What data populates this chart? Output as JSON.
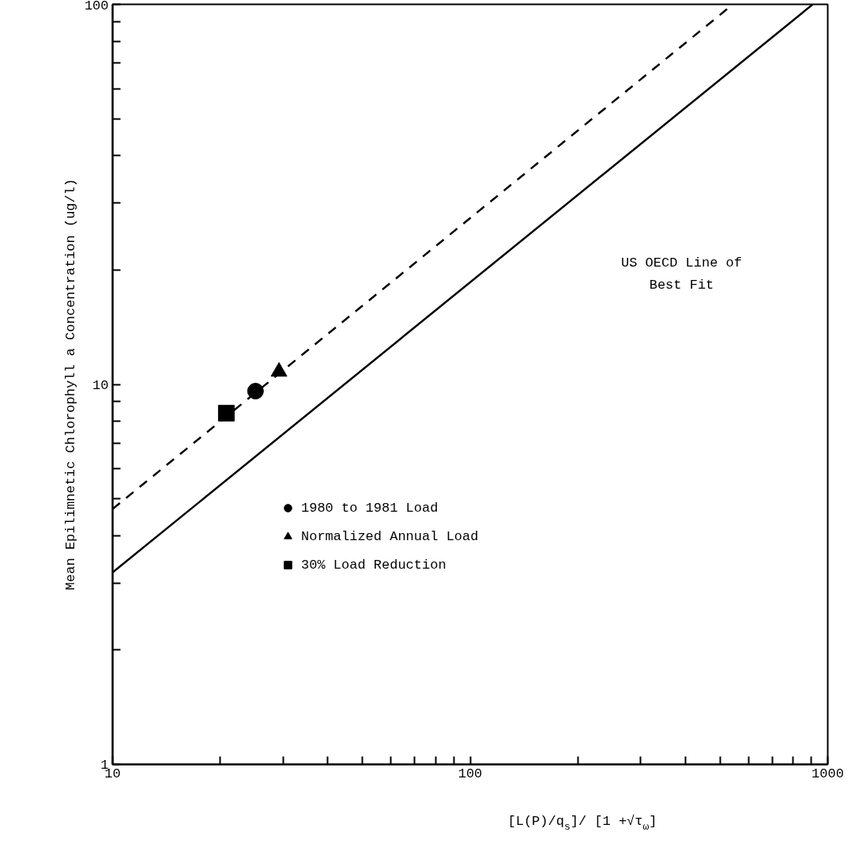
{
  "chart_data": {
    "type": "scatter",
    "xlabel": "[L(P)/q$_{s}$]/ [1 +√τ$_{ω}$]",
    "ylabel": "Mean Epilimnetic Chlorophyll a Concentration (ug/l)",
    "log": "xy",
    "xlim": [
      10,
      1000
    ],
    "ylim": [
      1,
      100
    ],
    "xticks": [
      10,
      {
        "value": 20,
        "label": null
      },
      {
        "value": 30,
        "label": null
      },
      {
        "value": 40,
        "label": null
      },
      {
        "value": 50,
        "label": null
      },
      {
        "value": 60,
        "label": null
      },
      {
        "value": 70,
        "label": null
      },
      {
        "value": 80,
        "label": null
      },
      {
        "value": 90,
        "label": null
      },
      100,
      {
        "value": 200,
        "label": null
      },
      {
        "value": 300,
        "label": null
      },
      {
        "value": 400,
        "label": null
      },
      {
        "value": 500,
        "label": null
      },
      {
        "value": 600,
        "label": null
      },
      {
        "value": 700,
        "label": null
      },
      {
        "value": 800,
        "label": null
      },
      {
        "value": 900,
        "label": null
      },
      1000
    ],
    "yticks": [
      1,
      {
        "value": 2,
        "label": null
      },
      {
        "value": 3,
        "label": null
      },
      {
        "value": 4,
        "label": null
      },
      {
        "value": 5,
        "label": null
      },
      {
        "value": 6,
        "label": null
      },
      {
        "value": 7,
        "label": null
      },
      {
        "value": 8,
        "label": null
      },
      {
        "value": 9,
        "label": null
      },
      10,
      {
        "value": 20,
        "label": null
      },
      {
        "value": 30,
        "label": null
      },
      {
        "value": 40,
        "label": null
      },
      {
        "value": 50,
        "label": null
      },
      {
        "value": 60,
        "label": null
      },
      {
        "value": 70,
        "label": null
      },
      {
        "value": 80,
        "label": null
      },
      {
        "value": 90,
        "label": null
      },
      100
    ],
    "grid": false,
    "legend": "left",
    "series": [
      {
        "type": "line",
        "color": "#000000",
        "line_style": "solid",
        "x": [
          10,
          908
        ],
        "values": [
          3.2,
          100
        ]
      },
      {
        "type": "line",
        "color": "#000000",
        "line_style": "dashed",
        "x": [
          10,
          543
        ],
        "values": [
          4.7,
          100
        ]
      },
      {
        "name": "1980 to 1981 Load",
        "marker": "circle",
        "color": "#000000",
        "x": [
          25.1
        ],
        "values": [
          9.6
        ]
      },
      {
        "name": "Normalized Annual Load",
        "marker": "triangle",
        "color": "#000000",
        "x": [
          29.2
        ],
        "values": [
          10.8
        ]
      },
      {
        "name": "30% Load Reduction",
        "marker": "square",
        "color": "#000000",
        "x": [
          20.8
        ],
        "values": [
          8.4
        ]
      }
    ],
    "annotations": [
      "US OECD Line of\nBest Fit"
    ]
  }
}
